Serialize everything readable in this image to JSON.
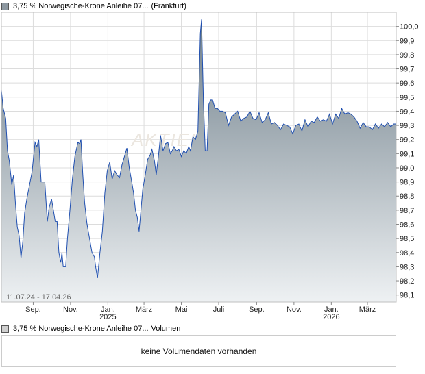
{
  "chart": {
    "legend_label": "3,75 % Norwegische-Krone Anleihe 07...",
    "exchange": "(Frankfurt)",
    "range_label": "11.07.24 - 17.04.26",
    "watermark": "AKTIEN",
    "colors": {
      "line": "#1f4fb0",
      "fill_top": "#6f7f8a",
      "fill_bottom": "#eef1f3",
      "grid": "#dcdcdc",
      "swatch_main": "#8c97a0"
    }
  },
  "volume": {
    "legend_label": "3,75 % Norwegische-Krone Anleihe 07...",
    "legend_suffix": "Volumen",
    "message": "keine Volumendaten vorhanden",
    "swatch_color": "#cfcfcf"
  },
  "chart_data": {
    "type": "area",
    "title": "",
    "xlabel": "",
    "ylabel": "",
    "ylim": [
      98.05,
      100.1
    ],
    "yticks": [
      "100,0",
      "99,9",
      "99,8",
      "99,7",
      "99,6",
      "99,5",
      "99,4",
      "99,3",
      "99,2",
      "99,1",
      "99,0",
      "98,9",
      "98,8",
      "98,7",
      "98,6",
      "98,5",
      "98,4",
      "98,3",
      "98,2",
      "98,1"
    ],
    "x_axis_range": [
      "2024-07-11",
      "2026-04-17"
    ],
    "x_month_ticks": [
      {
        "label": "Sep.",
        "date": "2024-09-01"
      },
      {
        "label": "Nov.",
        "date": "2024-11-01"
      },
      {
        "label": "Jan.",
        "date": "2025-01-01",
        "year": "2025"
      },
      {
        "label": "März",
        "date": "2025-03-01"
      },
      {
        "label": "Mai",
        "date": "2025-05-01"
      },
      {
        "label": "Juli",
        "date": "2025-07-01"
      },
      {
        "label": "Sep.",
        "date": "2025-09-01"
      },
      {
        "label": "Nov.",
        "date": "2025-11-01"
      },
      {
        "label": "Jan.",
        "date": "2026-01-01",
        "year": "2026"
      },
      {
        "label": "März",
        "date": "2026-03-01"
      }
    ],
    "grid": true,
    "series": [
      {
        "points": [
          [
            "2024-07-11",
            99.55
          ],
          [
            "2024-07-14",
            99.42
          ],
          [
            "2024-07-18",
            99.35
          ],
          [
            "2024-07-21",
            99.12
          ],
          [
            "2024-07-24",
            99.05
          ],
          [
            "2024-07-28",
            98.88
          ],
          [
            "2024-07-31",
            98.95
          ],
          [
            "2024-08-03",
            98.75
          ],
          [
            "2024-08-06",
            98.58
          ],
          [
            "2024-08-09",
            98.52
          ],
          [
            "2024-08-12",
            98.36
          ],
          [
            "2024-08-15",
            98.48
          ],
          [
            "2024-08-18",
            98.68
          ],
          [
            "2024-08-22",
            98.79
          ],
          [
            "2024-08-26",
            98.88
          ],
          [
            "2024-08-30",
            98.97
          ],
          [
            "2024-09-04",
            99.18
          ],
          [
            "2024-09-07",
            99.15
          ],
          [
            "2024-09-10",
            99.2
          ],
          [
            "2024-09-14",
            98.9
          ],
          [
            "2024-09-17",
            98.9
          ],
          [
            "2024-09-20",
            98.9
          ],
          [
            "2024-09-24",
            98.62
          ],
          [
            "2024-09-27",
            98.72
          ],
          [
            "2024-10-01",
            98.78
          ],
          [
            "2024-10-04",
            98.7
          ],
          [
            "2024-10-07",
            98.62
          ],
          [
            "2024-10-10",
            98.62
          ],
          [
            "2024-10-13",
            98.4
          ],
          [
            "2024-10-16",
            98.33
          ],
          [
            "2024-10-18",
            98.4
          ],
          [
            "2024-10-20",
            98.3
          ],
          [
            "2024-10-24",
            98.3
          ],
          [
            "2024-10-27",
            98.5
          ],
          [
            "2024-10-31",
            98.7
          ],
          [
            "2024-11-04",
            98.92
          ],
          [
            "2024-11-08",
            99.08
          ],
          [
            "2024-11-13",
            99.18
          ],
          [
            "2024-11-16",
            99.17
          ],
          [
            "2024-11-18",
            99.2
          ],
          [
            "2024-11-21",
            98.95
          ],
          [
            "2024-11-24",
            98.75
          ],
          [
            "2024-11-28",
            98.6
          ],
          [
            "2024-12-02",
            98.5
          ],
          [
            "2024-12-06",
            98.4
          ],
          [
            "2024-12-10",
            98.37
          ],
          [
            "2024-12-12",
            98.3
          ],
          [
            "2024-12-15",
            98.22
          ],
          [
            "2024-12-19",
            98.4
          ],
          [
            "2024-12-23",
            98.55
          ],
          [
            "2024-12-27",
            98.82
          ],
          [
            "2024-12-31",
            98.98
          ],
          [
            "2025-01-04",
            99.04
          ],
          [
            "2025-01-08",
            98.92
          ],
          [
            "2025-01-12",
            98.98
          ],
          [
            "2025-01-16",
            98.95
          ],
          [
            "2025-01-20",
            98.93
          ],
          [
            "2025-01-24",
            99.02
          ],
          [
            "2025-02-01",
            99.14
          ],
          [
            "2025-02-05",
            99.0
          ],
          [
            "2025-02-09",
            98.9
          ],
          [
            "2025-02-12",
            98.82
          ],
          [
            "2025-02-15",
            98.7
          ],
          [
            "2025-02-18",
            98.65
          ],
          [
            "2025-02-21",
            98.55
          ],
          [
            "2025-02-24",
            98.7
          ],
          [
            "2025-02-27",
            98.85
          ],
          [
            "2025-03-03",
            98.95
          ],
          [
            "2025-03-07",
            99.06
          ],
          [
            "2025-03-11",
            99.09
          ],
          [
            "2025-03-14",
            99.13
          ],
          [
            "2025-03-18",
            99.05
          ],
          [
            "2025-03-21",
            98.95
          ],
          [
            "2025-03-25",
            99.1
          ],
          [
            "2025-03-28",
            99.23
          ],
          [
            "2025-04-01",
            99.12
          ],
          [
            "2025-04-05",
            99.17
          ],
          [
            "2025-04-09",
            99.18
          ],
          [
            "2025-04-13",
            99.1
          ],
          [
            "2025-04-16",
            99.12
          ],
          [
            "2025-04-19",
            99.15
          ],
          [
            "2025-04-23",
            99.12
          ],
          [
            "2025-04-27",
            99.13
          ],
          [
            "2025-05-01",
            99.08
          ],
          [
            "2025-05-05",
            99.12
          ],
          [
            "2025-05-09",
            99.1
          ],
          [
            "2025-05-13",
            99.15
          ],
          [
            "2025-05-16",
            99.12
          ],
          [
            "2025-05-20",
            99.22
          ],
          [
            "2025-05-24",
            99.2
          ],
          [
            "2025-05-28",
            99.26
          ],
          [
            "2025-06-01",
            99.95
          ],
          [
            "2025-06-03",
            100.05
          ],
          [
            "2025-06-06",
            99.48
          ],
          [
            "2025-06-09",
            99.12
          ],
          [
            "2025-06-12",
            99.12
          ],
          [
            "2025-06-15",
            99.45
          ],
          [
            "2025-06-18",
            99.48
          ],
          [
            "2025-06-21",
            99.48
          ],
          [
            "2025-06-25",
            99.42
          ],
          [
            "2025-06-29",
            99.42
          ],
          [
            "2025-07-03",
            99.4
          ],
          [
            "2025-07-07",
            99.4
          ],
          [
            "2025-07-12",
            99.39
          ],
          [
            "2025-07-17",
            99.3
          ],
          [
            "2025-07-22",
            99.36
          ],
          [
            "2025-07-27",
            99.38
          ],
          [
            "2025-08-01",
            99.4
          ],
          [
            "2025-08-06",
            99.33
          ],
          [
            "2025-08-11",
            99.35
          ],
          [
            "2025-08-16",
            99.36
          ],
          [
            "2025-08-21",
            99.4
          ],
          [
            "2025-08-26",
            99.35
          ],
          [
            "2025-08-31",
            99.34
          ],
          [
            "2025-09-05",
            99.39
          ],
          [
            "2025-09-10",
            99.32
          ],
          [
            "2025-09-15",
            99.34
          ],
          [
            "2025-09-20",
            99.39
          ],
          [
            "2025-09-25",
            99.31
          ],
          [
            "2025-09-30",
            99.32
          ],
          [
            "2025-10-05",
            99.3
          ],
          [
            "2025-10-10",
            99.27
          ],
          [
            "2025-10-15",
            99.31
          ],
          [
            "2025-10-20",
            99.3
          ],
          [
            "2025-10-25",
            99.29
          ],
          [
            "2025-10-30",
            99.24
          ],
          [
            "2025-11-04",
            99.3
          ],
          [
            "2025-11-09",
            99.31
          ],
          [
            "2025-11-14",
            99.26
          ],
          [
            "2025-11-19",
            99.34
          ],
          [
            "2025-11-24",
            99.29
          ],
          [
            "2025-11-29",
            99.33
          ],
          [
            "2025-12-04",
            99.32
          ],
          [
            "2025-12-09",
            99.36
          ],
          [
            "2025-12-14",
            99.33
          ],
          [
            "2025-12-19",
            99.34
          ],
          [
            "2025-12-24",
            99.33
          ],
          [
            "2025-12-29",
            99.38
          ],
          [
            "2026-01-03",
            99.31
          ],
          [
            "2026-01-08",
            99.38
          ],
          [
            "2026-01-13",
            99.35
          ],
          [
            "2026-01-18",
            99.42
          ],
          [
            "2026-01-23",
            99.38
          ],
          [
            "2026-01-28",
            99.39
          ],
          [
            "2026-02-02",
            99.38
          ],
          [
            "2026-02-07",
            99.36
          ],
          [
            "2026-02-12",
            99.33
          ],
          [
            "2026-02-17",
            99.28
          ],
          [
            "2026-02-22",
            99.32
          ],
          [
            "2026-02-27",
            99.29
          ],
          [
            "2026-03-04",
            99.29
          ],
          [
            "2026-03-09",
            99.27
          ],
          [
            "2026-03-14",
            99.31
          ],
          [
            "2026-03-19",
            99.28
          ],
          [
            "2026-03-24",
            99.31
          ],
          [
            "2026-03-29",
            99.29
          ],
          [
            "2026-04-03",
            99.32
          ],
          [
            "2026-04-08",
            99.29
          ],
          [
            "2026-04-13",
            99.31
          ],
          [
            "2026-04-17",
            99.31
          ]
        ]
      }
    ]
  }
}
